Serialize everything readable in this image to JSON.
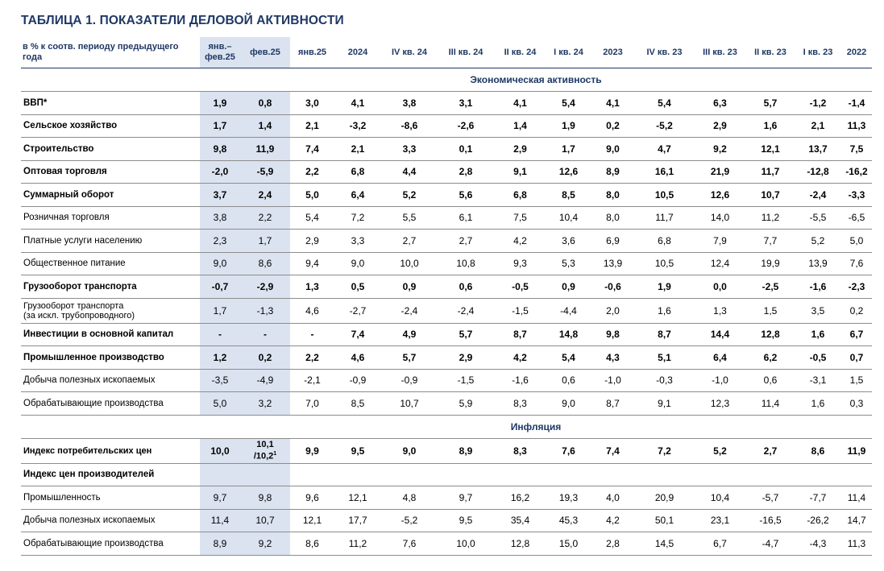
{
  "title": "ТАБЛИЦА 1. ПОКАЗАТЕЛИ ДЕЛОВОЙ АКТИВНОСТИ",
  "header": {
    "label": "в % к соотв. периоду предыдущего года",
    "columns": [
      "янв.–фев.25",
      "фев.25",
      "янв.25",
      "2024",
      "IV кв. 24",
      "III кв. 24",
      "II кв. 24",
      "I кв. 24",
      "2023",
      "IV кв. 23",
      "III кв. 23",
      "II кв. 23",
      "I кв. 23",
      "2022"
    ]
  },
  "sections": {
    "activity": "Экономическая активность",
    "inflation": "Инфляция"
  },
  "rows": [
    {
      "label": "ВВП*",
      "values": [
        "1,9",
        "0,8",
        "3,0",
        "4,1",
        "3,8",
        "3,1",
        "4,1",
        "5,4",
        "4,1",
        "5,4",
        "6,3",
        "5,7",
        "-1,2",
        "-1,4"
      ]
    },
    {
      "label": "Сельское хозяйство",
      "values": [
        "1,7",
        "1,4",
        "2,1",
        "-3,2",
        "-8,6",
        "-2,6",
        "1,4",
        "1,9",
        "0,2",
        "-5,2",
        "2,9",
        "1,6",
        "2,1",
        "11,3"
      ]
    },
    {
      "label": "Строительство",
      "values": [
        "9,8",
        "11,9",
        "7,4",
        "2,1",
        "3,3",
        "0,1",
        "2,9",
        "1,7",
        "9,0",
        "4,7",
        "9,2",
        "12,1",
        "13,7",
        "7,5"
      ]
    },
    {
      "label": "Оптовая торговля",
      "values": [
        "-2,0",
        "-5,9",
        "2,2",
        "6,8",
        "4,4",
        "2,8",
        "9,1",
        "12,6",
        "8,9",
        "16,1",
        "21,9",
        "11,7",
        "-12,8",
        "-16,2"
      ]
    },
    {
      "label": "Суммарный оборот",
      "values": [
        "3,7",
        "2,4",
        "5,0",
        "6,4",
        "5,2",
        "5,6",
        "6,8",
        "8,5",
        "8,0",
        "10,5",
        "12,6",
        "10,7",
        "-2,4",
        "-3,3"
      ]
    },
    {
      "label": "Розничная торговля",
      "values": [
        "3,8",
        "2,2",
        "5,4",
        "7,2",
        "5,5",
        "6,1",
        "7,5",
        "10,4",
        "8,0",
        "11,7",
        "14,0",
        "11,2",
        "-5,5",
        "-6,5"
      ]
    },
    {
      "label": "Платные услуги населению",
      "values": [
        "2,3",
        "1,7",
        "2,9",
        "3,3",
        "2,7",
        "2,7",
        "4,2",
        "3,6",
        "6,9",
        "6,8",
        "7,9",
        "7,7",
        "5,2",
        "5,0"
      ]
    },
    {
      "label": "Общественное питание",
      "values": [
        "9,0",
        "8,6",
        "9,4",
        "9,0",
        "10,0",
        "10,8",
        "9,3",
        "5,3",
        "13,9",
        "10,5",
        "12,4",
        "19,9",
        "13,9",
        "7,6"
      ]
    },
    {
      "label": "Грузооборот транспорта",
      "values": [
        "-0,7",
        "-2,9",
        "1,3",
        "0,5",
        "0,9",
        "0,6",
        "-0,5",
        "0,9",
        "-0,6",
        "1,9",
        "0,0",
        "-2,5",
        "-1,6",
        "-2,3"
      ]
    },
    {
      "label": "Грузооборот транспорта",
      "label2": "(за искл. трубопроводного)",
      "values": [
        "1,7",
        "-1,3",
        "4,6",
        "-2,7",
        "-2,4",
        "-2,4",
        "-1,5",
        "-4,4",
        "2,0",
        "1,6",
        "1,3",
        "1,5",
        "3,5",
        "0,2"
      ]
    },
    {
      "label": "Инвестиции в основной капитал",
      "values": [
        "-",
        "-",
        "-",
        "7,4",
        "4,9",
        "5,7",
        "8,7",
        "14,8",
        "9,8",
        "8,7",
        "14,4",
        "12,8",
        "1,6",
        "6,7"
      ]
    },
    {
      "label": "Промышленное производство",
      "values": [
        "1,2",
        "0,2",
        "2,2",
        "4,6",
        "5,7",
        "2,9",
        "4,2",
        "5,4",
        "4,3",
        "5,1",
        "6,4",
        "6,2",
        "-0,5",
        "0,7"
      ]
    },
    {
      "label": "Добыча полезных ископаемых",
      "values": [
        "-3,5",
        "-4,9",
        "-2,1",
        "-0,9",
        "-0,9",
        "-1,5",
        "-1,6",
        "0,6",
        "-1,0",
        "-0,3",
        "-1,0",
        "0,6",
        "-3,1",
        "1,5"
      ]
    },
    {
      "label": "Обрабатывающие производства",
      "values": [
        "5,0",
        "3,2",
        "7,0",
        "8,5",
        "10,7",
        "5,9",
        "8,3",
        "9,0",
        "8,7",
        "9,1",
        "12,3",
        "11,4",
        "1,6",
        "0,3"
      ]
    }
  ],
  "cpi": {
    "label": "Индекс потребительских цен",
    "v0": "10,0",
    "v1_line1": "10,1",
    "v1_line2": "/10,2",
    "v1_sup": "1",
    "values": [
      "9,9",
      "9,5",
      "9,0",
      "8,9",
      "8,3",
      "7,6",
      "7,4",
      "7,2",
      "5,2",
      "2,7",
      "8,6",
      "11,9"
    ]
  },
  "ppi_header": "Индекс цен производителей",
  "ppi_rows": [
    {
      "label": "Промышленность",
      "values": [
        "9,7",
        "9,8",
        "9,6",
        "12,1",
        "4,8",
        "9,7",
        "16,2",
        "19,3",
        "4,0",
        "20,9",
        "10,4",
        "-5,7",
        "-7,7",
        "11,4"
      ]
    },
    {
      "label": "Добыча полезных ископаемых",
      "values": [
        "11,4",
        "10,7",
        "12,1",
        "17,7",
        "-5,2",
        "9,5",
        "35,4",
        "45,3",
        "4,2",
        "50,1",
        "23,1",
        "-16,5",
        "-26,2",
        "14,7"
      ]
    },
    {
      "label": "Обрабатывающие производства",
      "values": [
        "8,9",
        "9,2",
        "8,6",
        "11,2",
        "7,6",
        "10,0",
        "12,8",
        "15,0",
        "2,8",
        "14,5",
        "6,7",
        "-4,7",
        "-4,3",
        "11,3"
      ]
    }
  ]
}
